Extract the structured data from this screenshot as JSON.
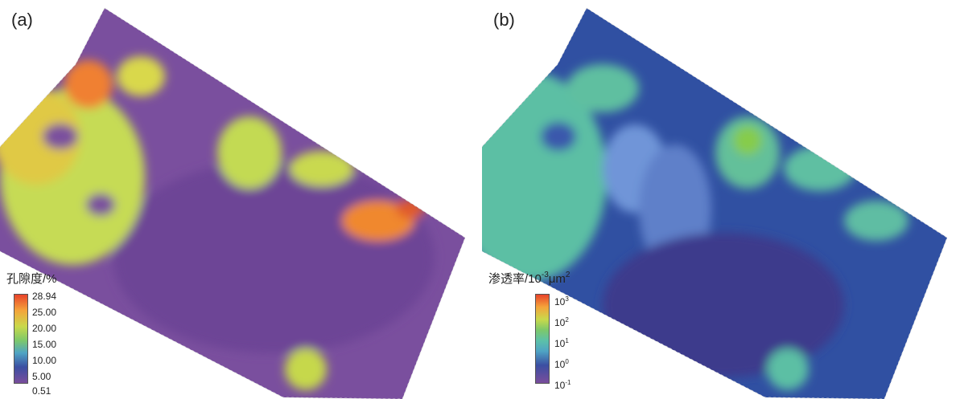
{
  "panels": [
    {
      "label": "(a)",
      "legend_title": "孔隙度/%",
      "ticks": [
        "28.94",
        "25.00",
        "20.00",
        "15.00",
        "10.00",
        "5.00",
        "0.51"
      ],
      "colors": {
        "background": "#7a4d9c",
        "low": "#5b3f95",
        "mid": "#c7d94c",
        "high": "#f07a30",
        "peak": "#e8432a"
      }
    },
    {
      "label": "(b)",
      "legend_title_base": "渗透率/10",
      "legend_title_exp": "-3",
      "legend_title_unit": "μm",
      "legend_title_unit_exp": "2",
      "ticks": [
        {
          "base": "10",
          "exp": "3"
        },
        {
          "base": "10",
          "exp": "2"
        },
        {
          "base": "10",
          "exp": "1"
        },
        {
          "base": "10",
          "exp": "0"
        },
        {
          "base": "10",
          "exp": "-1"
        }
      ],
      "colors": {
        "background": "#2f4fa0",
        "low": "#3d3a8c",
        "mid": "#5cc1a8",
        "high": "#7fc94a",
        "light": "#6f93d6"
      }
    }
  ]
}
